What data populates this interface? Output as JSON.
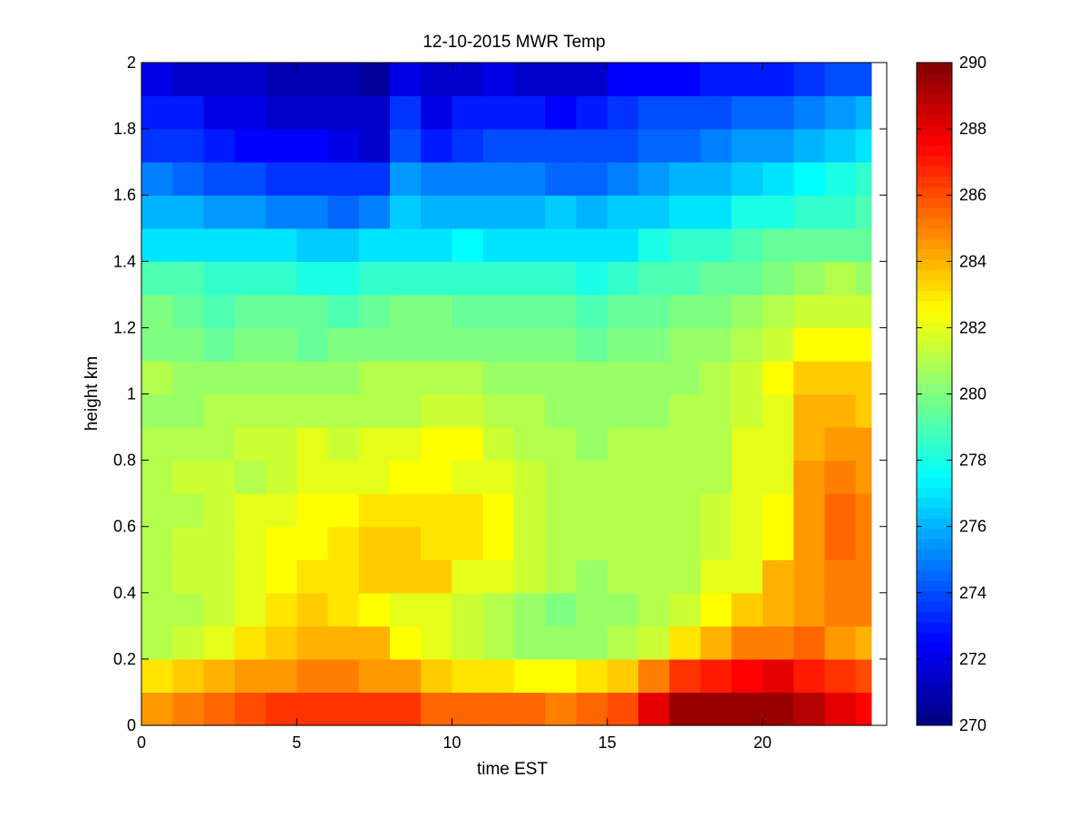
{
  "chart_data": {
    "type": "heatmap",
    "title": "12-10-2015 MWR Temp",
    "xlabel": "time EST",
    "ylabel": "height km",
    "xlim": [
      0,
      24
    ],
    "ylim": [
      0,
      2
    ],
    "x_ticks": [
      0,
      5,
      10,
      15,
      20
    ],
    "x_tick_labels": [
      "0",
      "5",
      "10",
      "15",
      "20"
    ],
    "y_ticks": [
      0,
      0.2,
      0.4,
      0.6,
      0.8,
      1,
      1.2,
      1.4,
      1.6,
      1.8,
      2
    ],
    "y_tick_labels": [
      "0",
      "0.2",
      "0.4",
      "0.6",
      "0.8",
      "1",
      "1.2",
      "1.4",
      "1.6",
      "1.8",
      "2"
    ],
    "colormap": "jet",
    "colorbar": {
      "range": [
        270,
        290
      ],
      "ticks": [
        270,
        272,
        274,
        276,
        278,
        280,
        282,
        284,
        286,
        288,
        290
      ],
      "tick_labels": [
        "270",
        "272",
        "274",
        "276",
        "278",
        "280",
        "282",
        "284",
        "286",
        "288",
        "290"
      ]
    },
    "x": [
      0,
      1,
      2,
      3,
      4,
      5,
      6,
      7,
      8,
      9,
      10,
      11,
      12,
      13,
      14,
      15,
      16,
      17,
      18,
      19,
      20,
      21,
      22,
      23
    ],
    "y": [
      0,
      0.1,
      0.2,
      0.3,
      0.4,
      0.5,
      0.6,
      0.7,
      0.8,
      0.9,
      1.0,
      1.1,
      1.2,
      1.3,
      1.4,
      1.5,
      1.6,
      1.7,
      1.8,
      1.9,
      2.0
    ],
    "z": [
      [
        284.5,
        285.0,
        285.5,
        286.0,
        286.5,
        286.5,
        286.5,
        286.5,
        286.5,
        285.5,
        285.5,
        285.5,
        285.5,
        285.0,
        285.5,
        286.0,
        288.0,
        289.5,
        289.5,
        289.5,
        289.5,
        289.0,
        288.0,
        287.5
      ],
      [
        283.0,
        283.5,
        284.0,
        284.5,
        284.5,
        285.0,
        285.0,
        284.5,
        284.5,
        283.5,
        283.0,
        283.0,
        282.5,
        282.5,
        283.0,
        283.5,
        285.0,
        286.5,
        287.0,
        287.5,
        288.0,
        287.0,
        286.5,
        286.0
      ],
      [
        281.0,
        281.5,
        282.0,
        283.0,
        283.5,
        284.0,
        284.0,
        284.0,
        282.5,
        282.0,
        281.5,
        281.0,
        280.5,
        280.5,
        280.5,
        281.0,
        281.5,
        283.0,
        284.0,
        285.0,
        285.0,
        285.5,
        284.5,
        284.0
      ],
      [
        281.0,
        281.0,
        281.5,
        282.0,
        283.0,
        283.5,
        283.0,
        282.5,
        282.0,
        282.0,
        281.5,
        281.0,
        280.5,
        280.0,
        280.5,
        280.5,
        281.0,
        281.5,
        282.5,
        283.5,
        284.0,
        284.5,
        285.0,
        285.0
      ],
      [
        281.0,
        281.5,
        281.5,
        282.0,
        282.5,
        283.0,
        283.0,
        283.5,
        283.5,
        283.5,
        282.0,
        282.0,
        281.5,
        281.0,
        280.5,
        281.0,
        281.0,
        281.0,
        282.0,
        282.0,
        284.0,
        284.5,
        285.0,
        285.0
      ],
      [
        281.0,
        281.5,
        281.5,
        282.0,
        282.5,
        282.5,
        283.0,
        283.5,
        283.5,
        283.0,
        283.0,
        282.5,
        281.5,
        281.0,
        281.0,
        281.0,
        281.0,
        281.0,
        281.5,
        282.0,
        282.5,
        284.5,
        285.5,
        285.0
      ],
      [
        281.0,
        281.0,
        281.5,
        282.0,
        282.0,
        282.5,
        282.5,
        283.0,
        283.0,
        283.0,
        283.0,
        282.5,
        281.5,
        281.0,
        281.0,
        281.0,
        281.0,
        281.0,
        281.5,
        282.0,
        282.5,
        284.5,
        285.5,
        285.0
      ],
      [
        281.0,
        281.5,
        281.5,
        281.0,
        281.5,
        282.0,
        282.0,
        282.0,
        282.5,
        282.5,
        282.0,
        282.0,
        281.5,
        281.0,
        281.0,
        281.0,
        281.0,
        281.0,
        281.0,
        282.0,
        282.0,
        284.5,
        285.0,
        284.5
      ],
      [
        281.0,
        281.0,
        281.0,
        281.5,
        281.5,
        282.0,
        281.5,
        282.0,
        282.0,
        282.5,
        282.5,
        281.5,
        281.0,
        281.0,
        280.5,
        281.0,
        281.0,
        281.0,
        281.0,
        282.0,
        282.0,
        284.0,
        284.5,
        284.5
      ],
      [
        280.5,
        280.5,
        281.0,
        281.0,
        281.0,
        281.0,
        281.0,
        281.0,
        281.0,
        281.5,
        281.5,
        281.0,
        281.0,
        280.5,
        280.5,
        280.5,
        280.5,
        281.0,
        281.0,
        281.5,
        282.0,
        284.0,
        284.0,
        283.5
      ],
      [
        281.0,
        280.5,
        280.5,
        280.5,
        280.5,
        280.5,
        280.5,
        281.0,
        281.0,
        281.0,
        281.0,
        280.5,
        280.5,
        280.5,
        280.5,
        280.5,
        280.5,
        280.5,
        281.0,
        281.5,
        282.5,
        283.5,
        283.5,
        283.5
      ],
      [
        280.0,
        280.0,
        279.5,
        280.0,
        280.0,
        279.5,
        280.0,
        280.0,
        280.0,
        280.0,
        280.0,
        280.0,
        280.0,
        280.0,
        279.5,
        280.0,
        280.0,
        280.5,
        280.5,
        281.0,
        281.5,
        282.5,
        282.5,
        282.5
      ],
      [
        280.0,
        279.5,
        279.0,
        279.5,
        279.5,
        279.5,
        279.0,
        279.5,
        280.0,
        280.0,
        279.5,
        279.5,
        279.5,
        279.5,
        279.0,
        279.5,
        279.5,
        280.0,
        280.0,
        280.5,
        281.0,
        281.5,
        281.5,
        281.5
      ],
      [
        279.0,
        279.0,
        278.5,
        278.5,
        278.5,
        278.0,
        278.0,
        278.5,
        278.5,
        278.5,
        278.5,
        278.5,
        278.5,
        278.5,
        278.0,
        278.5,
        279.0,
        279.0,
        279.5,
        279.5,
        280.0,
        280.5,
        281.0,
        280.5
      ],
      [
        277.0,
        277.0,
        277.0,
        277.0,
        277.0,
        276.5,
        276.5,
        277.0,
        277.0,
        277.0,
        277.5,
        277.0,
        277.0,
        277.0,
        277.0,
        277.0,
        278.0,
        278.5,
        278.5,
        279.0,
        279.5,
        279.5,
        279.5,
        279.5
      ],
      [
        276.0,
        276.0,
        275.5,
        275.5,
        275.0,
        275.0,
        274.5,
        275.0,
        276.5,
        276.0,
        276.0,
        276.0,
        276.0,
        276.5,
        276.0,
        276.5,
        276.5,
        277.0,
        277.0,
        278.0,
        278.0,
        278.5,
        278.5,
        279.0
      ],
      [
        275.0,
        274.5,
        274.0,
        274.0,
        273.5,
        273.5,
        273.5,
        273.5,
        275.5,
        275.0,
        275.0,
        275.0,
        275.0,
        274.5,
        274.5,
        275.0,
        275.5,
        276.0,
        276.0,
        276.5,
        277.0,
        277.5,
        278.0,
        278.5
      ],
      [
        273.5,
        273.5,
        273.0,
        272.5,
        272.5,
        272.5,
        272.0,
        271.5,
        274.0,
        273.0,
        273.5,
        274.0,
        274.0,
        274.0,
        274.0,
        274.0,
        274.5,
        274.5,
        275.0,
        275.5,
        275.5,
        276.0,
        276.5,
        277.0
      ],
      [
        273.0,
        273.0,
        272.0,
        272.0,
        271.5,
        271.5,
        271.5,
        271.5,
        273.5,
        272.0,
        273.0,
        273.0,
        273.0,
        272.5,
        273.0,
        273.5,
        274.0,
        274.0,
        274.0,
        274.5,
        274.5,
        275.0,
        275.5,
        276.0
      ],
      [
        272.0,
        271.5,
        271.5,
        271.5,
        271.0,
        271.0,
        271.0,
        270.5,
        272.0,
        271.5,
        271.5,
        272.0,
        271.5,
        271.5,
        271.5,
        272.5,
        272.5,
        272.5,
        273.0,
        273.0,
        273.0,
        273.5,
        274.0,
        274.0
      ],
      [
        271.0,
        271.0,
        271.0,
        271.0,
        271.0,
        271.0,
        271.0,
        271.0,
        271.5,
        271.0,
        271.0,
        271.0,
        271.0,
        271.0,
        271.0,
        271.5,
        272.0,
        272.0,
        272.0,
        272.0,
        272.5,
        272.5,
        273.0,
        273.0
      ]
    ]
  }
}
